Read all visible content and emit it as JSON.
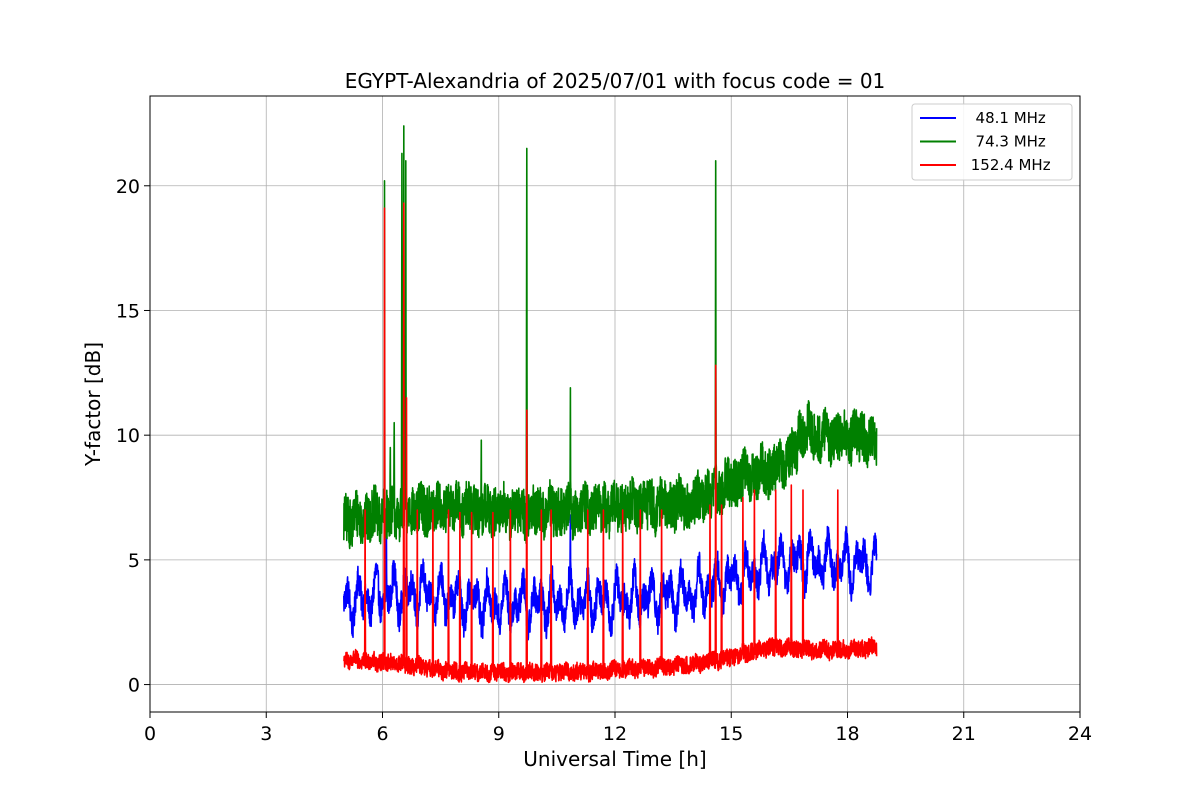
{
  "chart_data": {
    "type": "line",
    "title": "EGYPT-Alexandria of 2025/07/01 with focus code = 01",
    "xlabel": "Universal Time [h]",
    "ylabel": "Y-factor [dB]",
    "xlim": [
      0,
      24
    ],
    "ylim": [
      -1.1,
      23.6
    ],
    "xticks": [
      0,
      3,
      6,
      9,
      12,
      15,
      18,
      21,
      24
    ],
    "yticks": [
      0,
      5,
      10,
      15,
      20
    ],
    "grid": true,
    "legend_position": "top-right",
    "series": [
      {
        "name": "  48.1 MHz",
        "color": "#0000ff",
        "base": [
          [
            5.0,
            3.3
          ],
          [
            6.0,
            3.6
          ],
          [
            7.0,
            3.7
          ],
          [
            8.0,
            3.4
          ],
          [
            9.0,
            3.2
          ],
          [
            10.0,
            3.3
          ],
          [
            11.0,
            3.4
          ],
          [
            12.0,
            3.4
          ],
          [
            13.0,
            3.5
          ],
          [
            14.0,
            3.7
          ],
          [
            15.0,
            4.2
          ],
          [
            16.0,
            4.8
          ],
          [
            17.0,
            5.0
          ],
          [
            18.0,
            4.9
          ],
          [
            18.75,
            4.8
          ]
        ],
        "noise": 0.6,
        "osc": 1.0,
        "spikes": [
          [
            10.85,
            6.8
          ],
          [
            6.1,
            6.3
          ]
        ]
      },
      {
        "name": "  74.3 MHz",
        "color": "#008000",
        "base": [
          [
            5.0,
            6.6
          ],
          [
            6.0,
            6.8
          ],
          [
            7.0,
            7.0
          ],
          [
            8.0,
            7.1
          ],
          [
            9.0,
            6.9
          ],
          [
            10.0,
            6.9
          ],
          [
            11.0,
            7.0
          ],
          [
            12.0,
            7.1
          ],
          [
            13.0,
            7.2
          ],
          [
            14.0,
            7.3
          ],
          [
            15.0,
            8.1
          ],
          [
            16.0,
            8.6
          ],
          [
            16.7,
            9.3
          ],
          [
            16.75,
            10.2
          ],
          [
            17.5,
            9.9
          ],
          [
            18.0,
            10.0
          ],
          [
            18.75,
            9.8
          ]
        ],
        "noise": 1.0,
        "osc": 0.3,
        "spikes": [
          [
            6.05,
            20.2
          ],
          [
            6.2,
            9.5
          ],
          [
            6.3,
            10.5
          ],
          [
            6.5,
            21.3
          ],
          [
            6.55,
            22.4
          ],
          [
            6.6,
            21.0
          ],
          [
            8.55,
            9.8
          ],
          [
            9.72,
            21.5
          ],
          [
            10.85,
            11.9
          ],
          [
            14.6,
            21.0
          ]
        ]
      },
      {
        "name": " 152.4 MHz",
        "color": "#ff0000",
        "base": [
          [
            5.0,
            1.0
          ],
          [
            6.0,
            0.9
          ],
          [
            7.0,
            0.7
          ],
          [
            8.0,
            0.5
          ],
          [
            9.0,
            0.5
          ],
          [
            10.0,
            0.5
          ],
          [
            11.0,
            0.5
          ],
          [
            12.0,
            0.6
          ],
          [
            13.0,
            0.7
          ],
          [
            14.0,
            0.8
          ],
          [
            15.0,
            1.1
          ],
          [
            16.0,
            1.5
          ],
          [
            17.0,
            1.4
          ],
          [
            18.0,
            1.4
          ],
          [
            18.75,
            1.5
          ]
        ],
        "noise": 0.35,
        "osc": 0.1,
        "spikes": [
          [
            6.05,
            19.1
          ],
          [
            6.55,
            19.3
          ],
          [
            6.62,
            11.5
          ],
          [
            9.72,
            11.0
          ],
          [
            14.6,
            12.8
          ],
          [
            5.55,
            7.0
          ],
          [
            6.9,
            7.0
          ],
          [
            7.3,
            7.0
          ],
          [
            7.7,
            7.0
          ],
          [
            8.0,
            6.9
          ],
          [
            8.3,
            6.9
          ],
          [
            8.85,
            6.9
          ],
          [
            9.3,
            7.0
          ],
          [
            10.1,
            7.0
          ],
          [
            10.35,
            7.0
          ],
          [
            11.3,
            7.0
          ],
          [
            11.7,
            7.0
          ],
          [
            12.2,
            7.0
          ],
          [
            12.65,
            7.0
          ],
          [
            13.2,
            7.0
          ],
          [
            14.45,
            7.2
          ],
          [
            14.75,
            7.2
          ],
          [
            15.3,
            7.5
          ],
          [
            15.6,
            7.8
          ],
          [
            16.15,
            7.8
          ],
          [
            16.55,
            8.0
          ],
          [
            16.85,
            7.8
          ],
          [
            17.75,
            7.8
          ]
        ]
      }
    ]
  }
}
